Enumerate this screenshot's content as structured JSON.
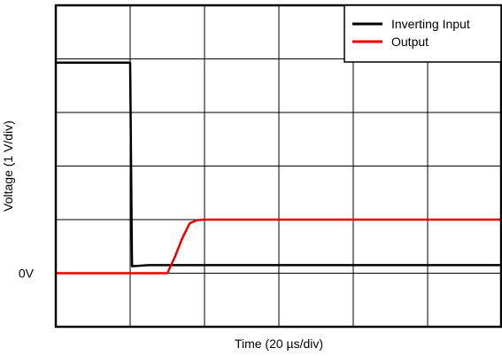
{
  "chart_data": {
    "type": "line",
    "xlabel": "Time (20 µs/div)",
    "ylabel": "Voltage (1 V/div)",
    "x_unit_per_div": 20,
    "y_unit_per_div": 1,
    "xlim": [
      0,
      120
    ],
    "ylim": [
      -1,
      5
    ],
    "divisions": {
      "x": 6,
      "y": 6
    },
    "grid": true,
    "legend_position": "top-right",
    "zero_label": "0V",
    "series": [
      {
        "name": "Inverting Input",
        "color": "#000000",
        "points": [
          [
            0,
            3.93
          ],
          [
            20,
            3.93
          ],
          [
            20.5,
            0.13
          ],
          [
            25,
            0.15
          ],
          [
            40,
            0.15
          ],
          [
            120,
            0.15
          ]
        ]
      },
      {
        "name": "Output",
        "color": "#e60000",
        "points": [
          [
            0,
            0
          ],
          [
            30,
            0
          ],
          [
            32,
            0.3
          ],
          [
            34,
            0.65
          ],
          [
            36,
            0.93
          ],
          [
            38,
            0.99
          ],
          [
            40,
            1.0
          ],
          [
            120,
            1.0
          ]
        ]
      }
    ]
  }
}
